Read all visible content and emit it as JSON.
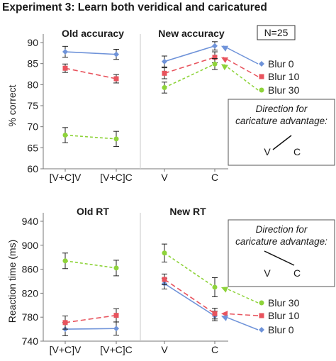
{
  "figure_title": "Experiment 3: Learn both veridical and caricatured",
  "colors": {
    "blur0": "#6f93d9",
    "blur10": "#e8535d",
    "blur30": "#8ed33a",
    "axis": "#777777",
    "error": "#222222"
  },
  "chart_data": [
    {
      "type": "line",
      "id": "accuracy",
      "ylabel": "% correct",
      "ylim": [
        60,
        90
      ],
      "yticks": [
        60,
        65,
        70,
        75,
        80,
        85,
        90
      ],
      "grid": false,
      "annotation": "N=25",
      "panels": [
        {
          "title": "Old accuracy",
          "categories": [
            "[V+C]V",
            "[V+C]C"
          ],
          "series": [
            {
              "name": "Blur 0",
              "values": [
                87.8,
                87.2
              ],
              "errors": [
                1.3,
                1.2
              ]
            },
            {
              "name": "Blur 10",
              "values": [
                83.9,
                81.4
              ],
              "errors": [
                1.0,
                1.0
              ]
            },
            {
              "name": "Blur 30",
              "values": [
                68.0,
                67.1
              ],
              "errors": [
                1.8,
                1.8
              ]
            }
          ]
        },
        {
          "title": "New accuracy",
          "categories": [
            "V",
            "C"
          ],
          "series": [
            {
              "name": "Blur 0",
              "values": [
                85.5,
                89.2
              ],
              "errors": [
                1.3,
                1.0
              ]
            },
            {
              "name": "Blur 10",
              "values": [
                82.7,
                86.5
              ],
              "errors": [
                1.3,
                1.3
              ]
            },
            {
              "name": "Blur 30",
              "values": [
                79.3,
                84.9
              ],
              "errors": [
                1.3,
                1.3
              ]
            }
          ]
        }
      ],
      "legend": {
        "position": "right",
        "entries": [
          "Blur 0",
          "Blur 10",
          "Blur 30"
        ]
      },
      "direction_box": {
        "title": [
          "Direction for",
          "caricature advantage:"
        ],
        "labels": [
          "V",
          "C"
        ],
        "direction": "up"
      }
    },
    {
      "type": "line",
      "id": "rt",
      "ylabel": "Reaction time (ms)",
      "ylim": [
        740,
        940
      ],
      "yticks": [
        740,
        780,
        820,
        860,
        900,
        940
      ],
      "grid": false,
      "panels": [
        {
          "title": "Old RT",
          "categories": [
            "[V+C]V",
            "[V+C]C"
          ],
          "series": [
            {
              "name": "Blur 0",
              "values": [
                760,
                761
              ],
              "errors": [
                11,
                11
              ]
            },
            {
              "name": "Blur 10",
              "values": [
                771,
                783
              ],
              "errors": [
                11,
                11
              ]
            },
            {
              "name": "Blur 30",
              "values": [
                874,
                862
              ],
              "errors": [
                13,
                13
              ]
            }
          ]
        },
        {
          "title": "New RT",
          "categories": [
            "V",
            "C"
          ],
          "series": [
            {
              "name": "Blur 0",
              "values": [
                836,
                782
              ],
              "errors": [
                9,
                8
              ]
            },
            {
              "name": "Blur 10",
              "values": [
                843,
                786
              ],
              "errors": [
                9,
                9
              ]
            },
            {
              "name": "Blur 30",
              "values": [
                887,
                830
              ],
              "errors": [
                15,
                16
              ]
            }
          ]
        }
      ],
      "legend": {
        "position": "right",
        "entries": [
          "Blur 30",
          "Blur 10",
          "Blur 0"
        ]
      },
      "direction_box": {
        "title": [
          "Direction for",
          "caricature advantage:"
        ],
        "labels": [
          "V",
          "C"
        ],
        "direction": "down"
      }
    }
  ]
}
